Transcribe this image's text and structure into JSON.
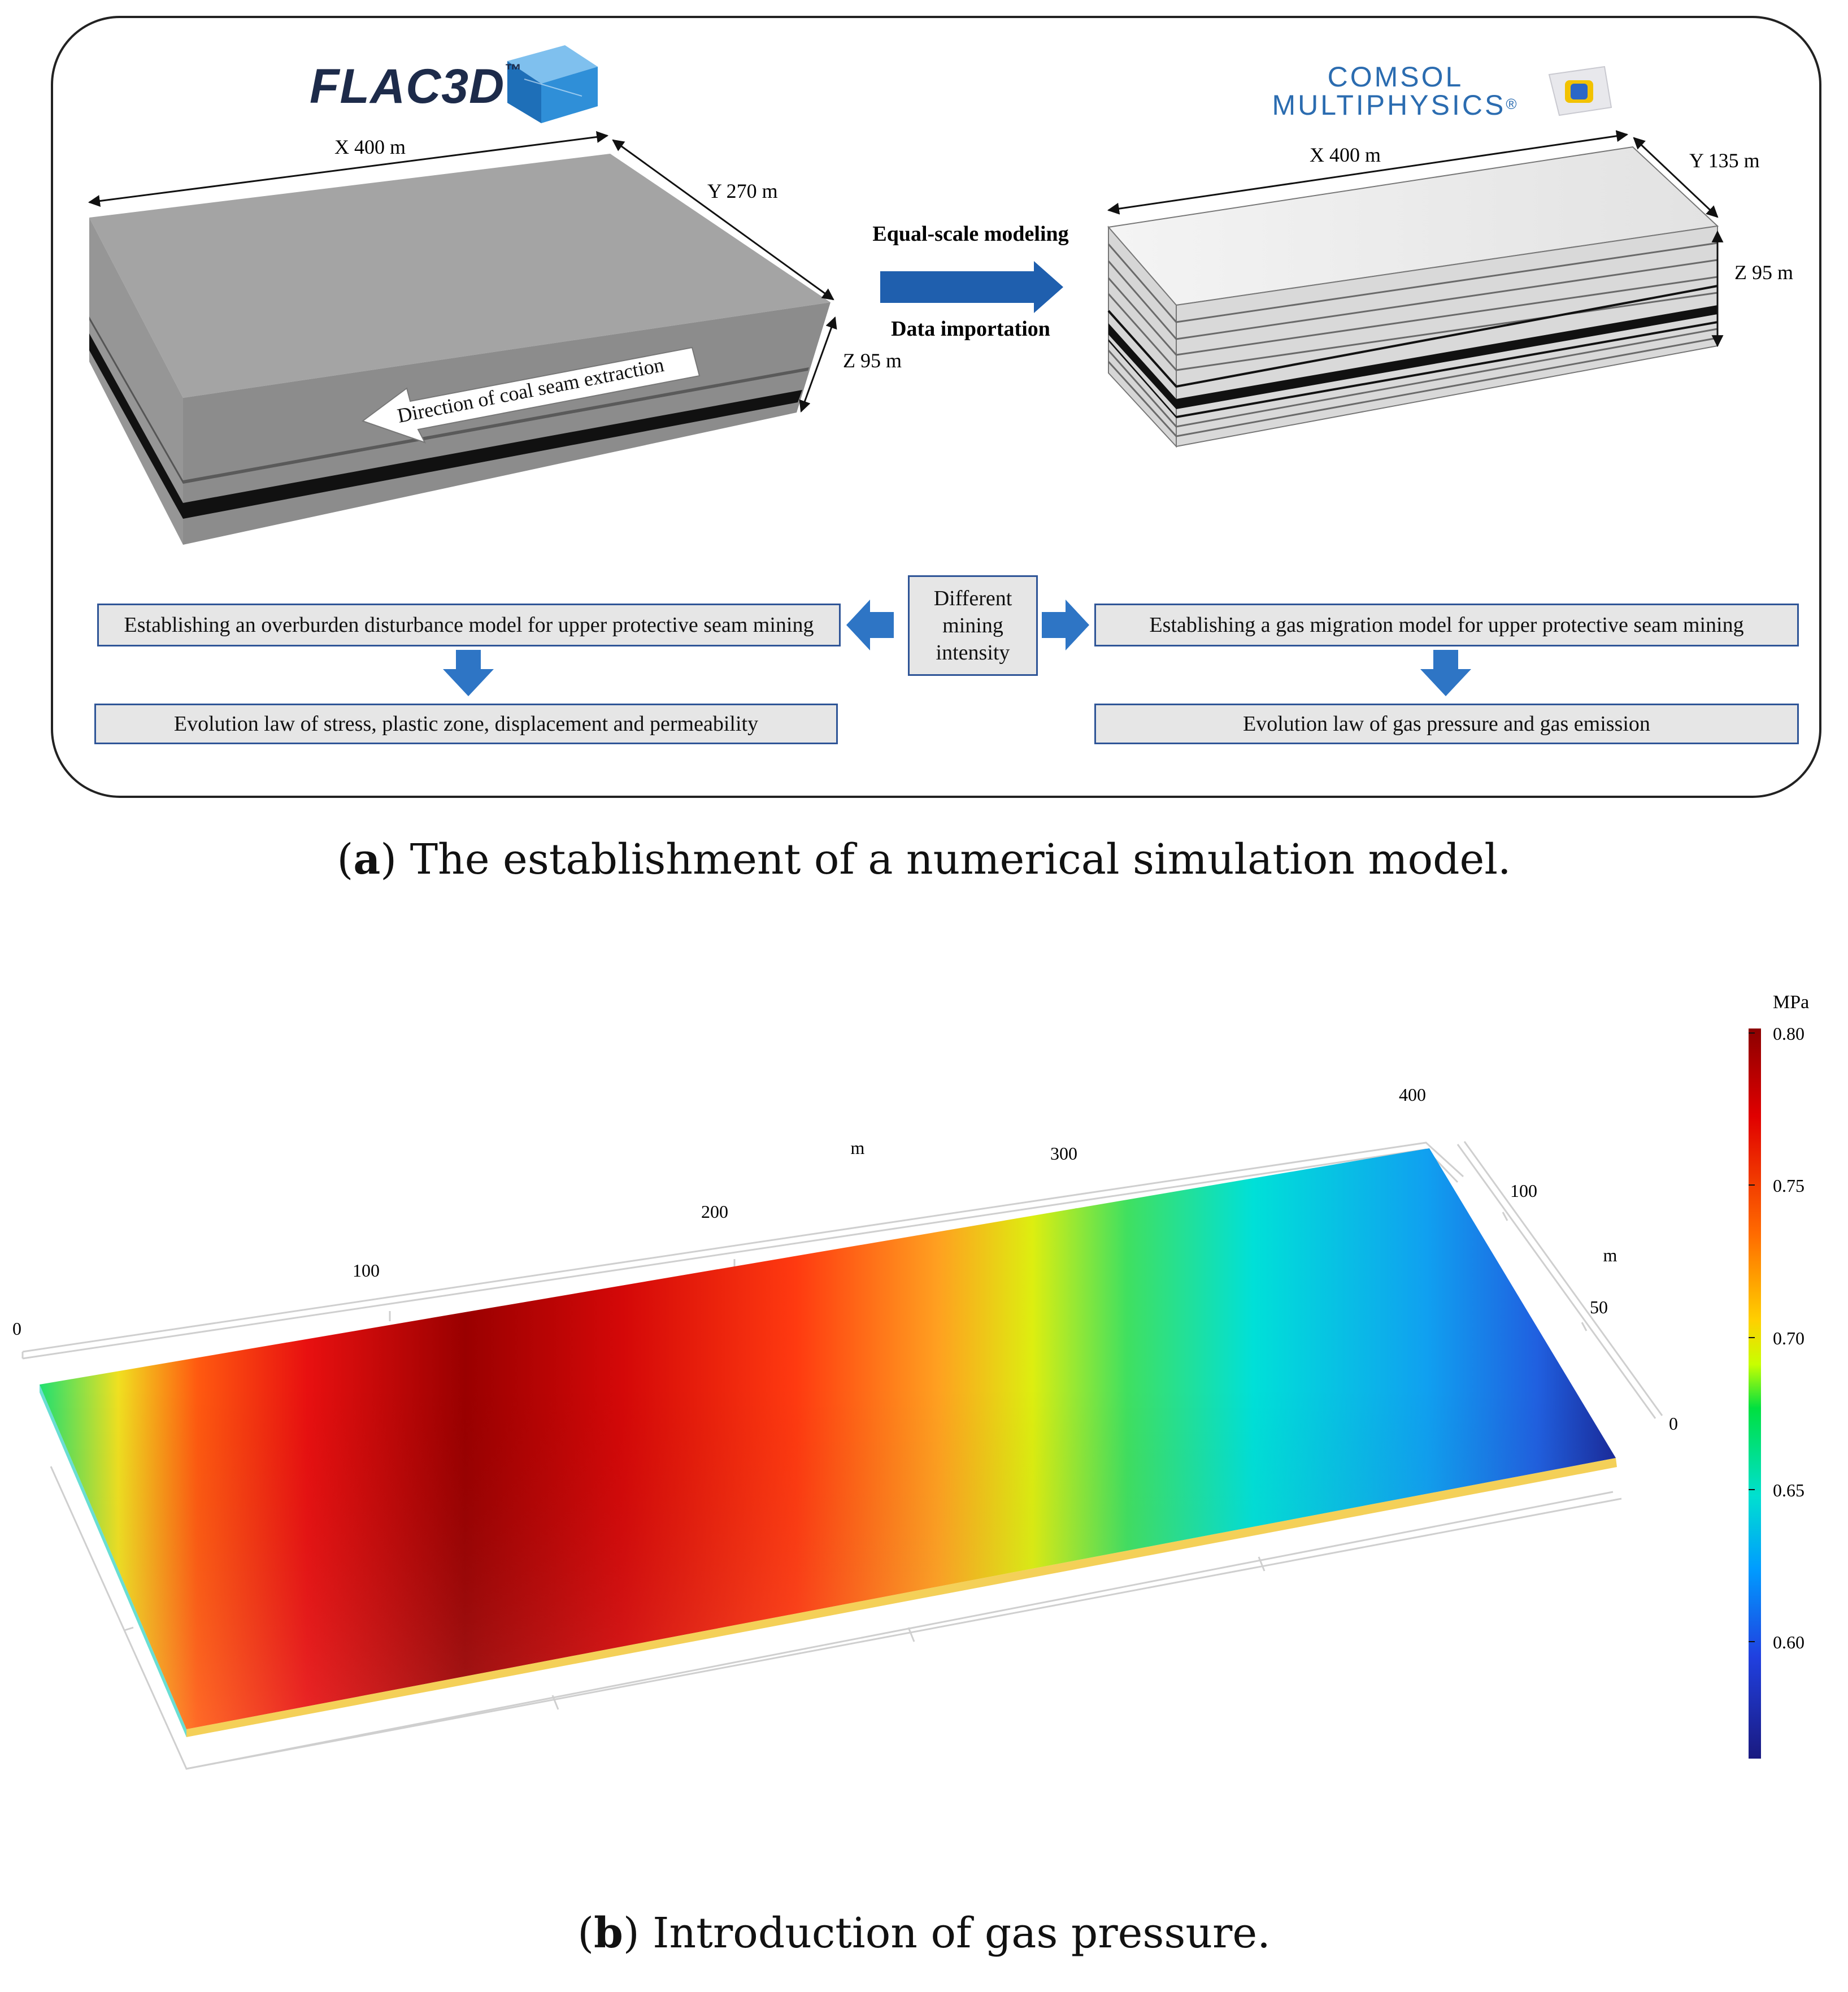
{
  "panel_a": {
    "flac_logo": "FLAC3D",
    "flac_logo_tm": "™",
    "comsol_logo_line1": "COMSOL",
    "comsol_logo_line2": "MULTIPHYSICS",
    "comsol_logo_mark": "®",
    "left_model": {
      "x_label": "X  400 m",
      "y_label": "Y  270 m",
      "z_label": "Z 95 m",
      "arrow_label": "Direction of coal seam extraction"
    },
    "right_model": {
      "x_label": "X  400 m",
      "y_label": "Y 135 m",
      "z_label": "Z 95 m"
    },
    "center_top": "Equal-scale modeling",
    "center_bottom": "Data importation",
    "box_center": [
      "Different",
      "mining",
      "intensity"
    ],
    "box_left_top": "Establishing an overburden disturbance model for upper protective seam mining",
    "box_left_bottom": "Evolution law of stress, plastic zone, displacement and permeability",
    "box_right_top": "Establishing a gas migration model for upper protective seam mining",
    "box_right_bottom": "Evolution law of gas pressure and gas emission",
    "caption_letter": "a",
    "caption_text": " The establishment of a numerical simulation model."
  },
  "panel_b": {
    "x_axis_unit": "m",
    "x_ticks": [
      "0",
      "100",
      "200",
      "300",
      "400"
    ],
    "y_axis_unit": "m",
    "y_ticks": [
      "0",
      "50",
      "100"
    ],
    "colorbar_unit": "MPa",
    "colorbar_ticks": [
      "0.80",
      "0.75",
      "0.70",
      "0.65",
      "0.60"
    ],
    "caption_letter": "b",
    "caption_text": " Introduction of gas pressure."
  },
  "colors": {
    "box_border": "#2f5597",
    "box_fill": "#e6e6e6",
    "arrow_blue": "#2e75c5",
    "model_gray": "#a6a6a6"
  }
}
